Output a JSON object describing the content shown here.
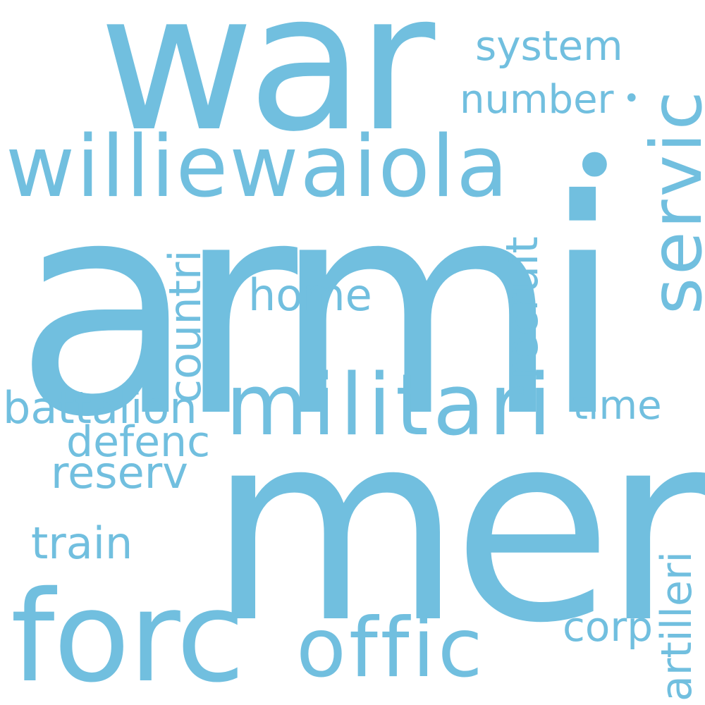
{
  "word_cloud": {
    "color": "#71bfdf",
    "background": "#ffffff",
    "words": {
      "war": "war",
      "armi": "armi",
      "men": "men",
      "williewaiola": "williewaiola",
      "dot": "•",
      "militari": "militari",
      "forc": "forc",
      "offic": "offic",
      "servic": "servic",
      "system": "system",
      "number": "number",
      "dot2": "•",
      "countri": "countri",
      "home": "home",
      "recruit": "recruit",
      "battalion": "battalion",
      "time": "time",
      "defenc": "defenc",
      "reserv": "reserv",
      "train": "train",
      "artilleri": "artilleri",
      "corp": "corp"
    }
  }
}
